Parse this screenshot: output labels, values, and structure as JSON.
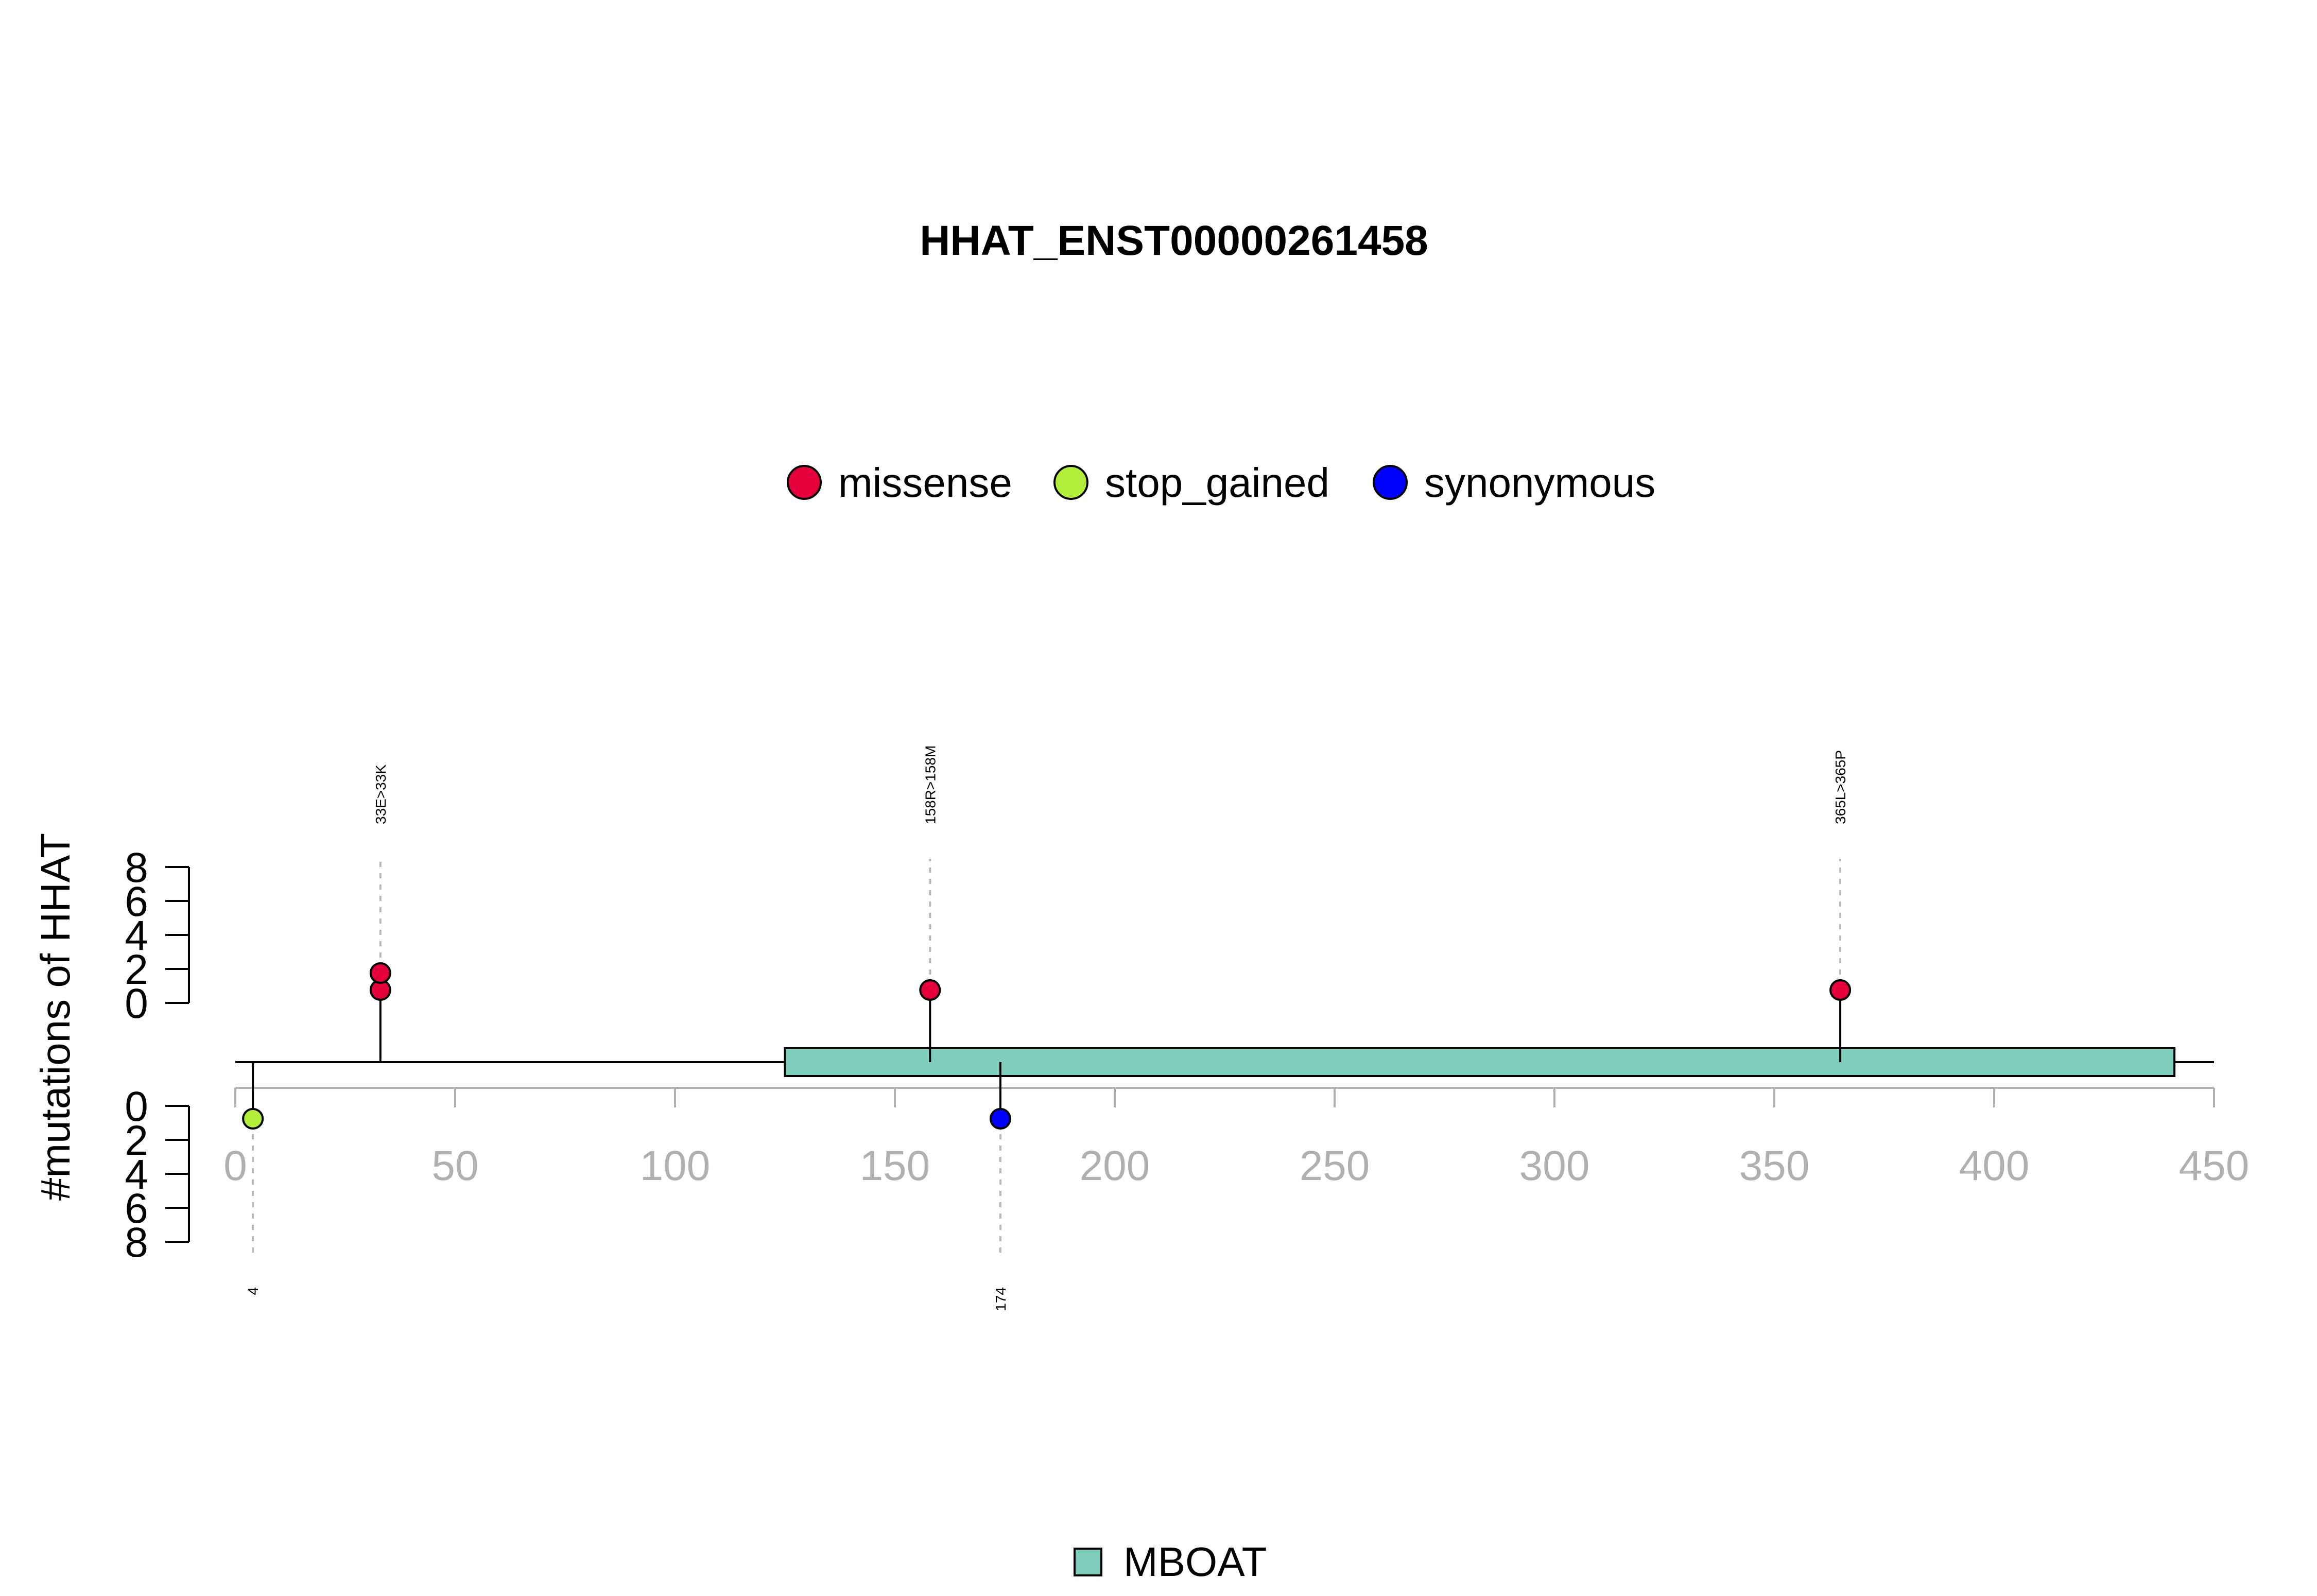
{
  "chart_data": {
    "type": "lollipop",
    "title": "HHAT_ENST00000261458",
    "ylabel": "#mutations of HHAT",
    "xlim": [
      0,
      450
    ],
    "x_ticks": [
      "0",
      "50",
      "100",
      "150",
      "200",
      "250",
      "300",
      "350",
      "400",
      "450"
    ],
    "y_ticks_upper": [
      "0",
      "2",
      "4",
      "6",
      "8"
    ],
    "y_ticks_lower": [
      "0",
      "2",
      "4",
      "6",
      "8"
    ],
    "protein_length": 450,
    "legend": {
      "placement": "top-center",
      "items": [
        {
          "name": "missense",
          "color": "#E4003A"
        },
        {
          "name": "stop_gained",
          "color": "#B3EE3A"
        },
        {
          "name": "synonymous",
          "color": "#0000FF"
        }
      ]
    },
    "domains": [
      {
        "name": "MBOAT",
        "start": 125,
        "end": 441,
        "color": "#7FCDBB"
      }
    ],
    "domain_legend": {
      "placement": "bottom-center"
    },
    "mutations": [
      {
        "label": "33E>33K",
        "position": 33,
        "count": 2,
        "type": "missense",
        "side": "top"
      },
      {
        "label": "158R>158M",
        "position": 158,
        "count": 1,
        "type": "missense",
        "side": "top"
      },
      {
        "label": "365L>365P",
        "position": 365,
        "count": 1,
        "type": "missense",
        "side": "top"
      },
      {
        "label": "4",
        "position": 4,
        "count": 1,
        "type": "stop_gained",
        "side": "bottom"
      },
      {
        "label": "174",
        "position": 174,
        "count": 1,
        "type": "synonymous",
        "side": "bottom"
      }
    ]
  }
}
